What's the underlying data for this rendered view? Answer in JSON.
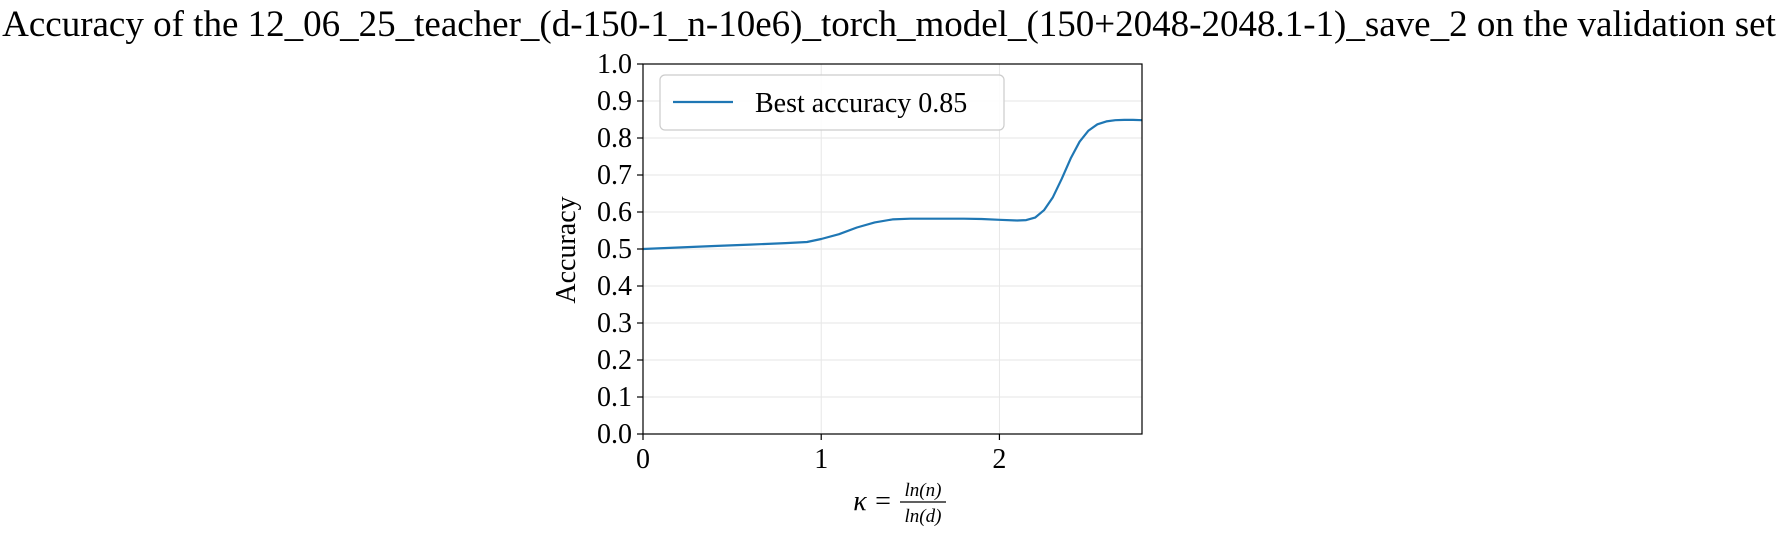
{
  "chart_data": {
    "type": "line",
    "title": "Accuracy of the 12_06_25_teacher_(d-150-1_n-10e6)_torch_model_(150+2048-2048.1-1)_save_2 on the validation set",
    "xlabel": {
      "symbol": "κ",
      "equals": "=",
      "numerator": "ln(n)",
      "denominator": "ln(d)"
    },
    "ylabel": "Accuracy",
    "xlim": [
      0,
      2.8
    ],
    "ylim": [
      0,
      1.0
    ],
    "xticks": [
      0,
      1,
      2
    ],
    "yticks": [
      0.0,
      0.1,
      0.2,
      0.3,
      0.4,
      0.5,
      0.6,
      0.7,
      0.8,
      0.9,
      1.0
    ],
    "xtick_labels": [
      "0",
      "1",
      "2"
    ],
    "ytick_labels": [
      "0.0",
      "0.1",
      "0.2",
      "0.3",
      "0.4",
      "0.5",
      "0.6",
      "0.7",
      "0.8",
      "0.9",
      "1.0"
    ],
    "grid": true,
    "legend_position": "top-left",
    "series": [
      {
        "name": "Best accuracy 0.85",
        "color": "#1f77b4",
        "x": [
          0,
          0.2,
          0.4,
          0.6,
          0.8,
          0.92,
          1.0,
          1.1,
          1.2,
          1.3,
          1.4,
          1.5,
          1.6,
          1.7,
          1.8,
          1.9,
          2.0,
          2.1,
          2.15,
          2.2,
          2.25,
          2.3,
          2.35,
          2.4,
          2.45,
          2.5,
          2.55,
          2.6,
          2.65,
          2.7,
          2.75,
          2.8
        ],
        "y": [
          0.5,
          0.504,
          0.508,
          0.512,
          0.516,
          0.519,
          0.527,
          0.54,
          0.558,
          0.572,
          0.58,
          0.582,
          0.582,
          0.582,
          0.582,
          0.581,
          0.579,
          0.577,
          0.578,
          0.585,
          0.605,
          0.64,
          0.69,
          0.745,
          0.79,
          0.82,
          0.837,
          0.845,
          0.848,
          0.849,
          0.849,
          0.848
        ]
      }
    ]
  }
}
